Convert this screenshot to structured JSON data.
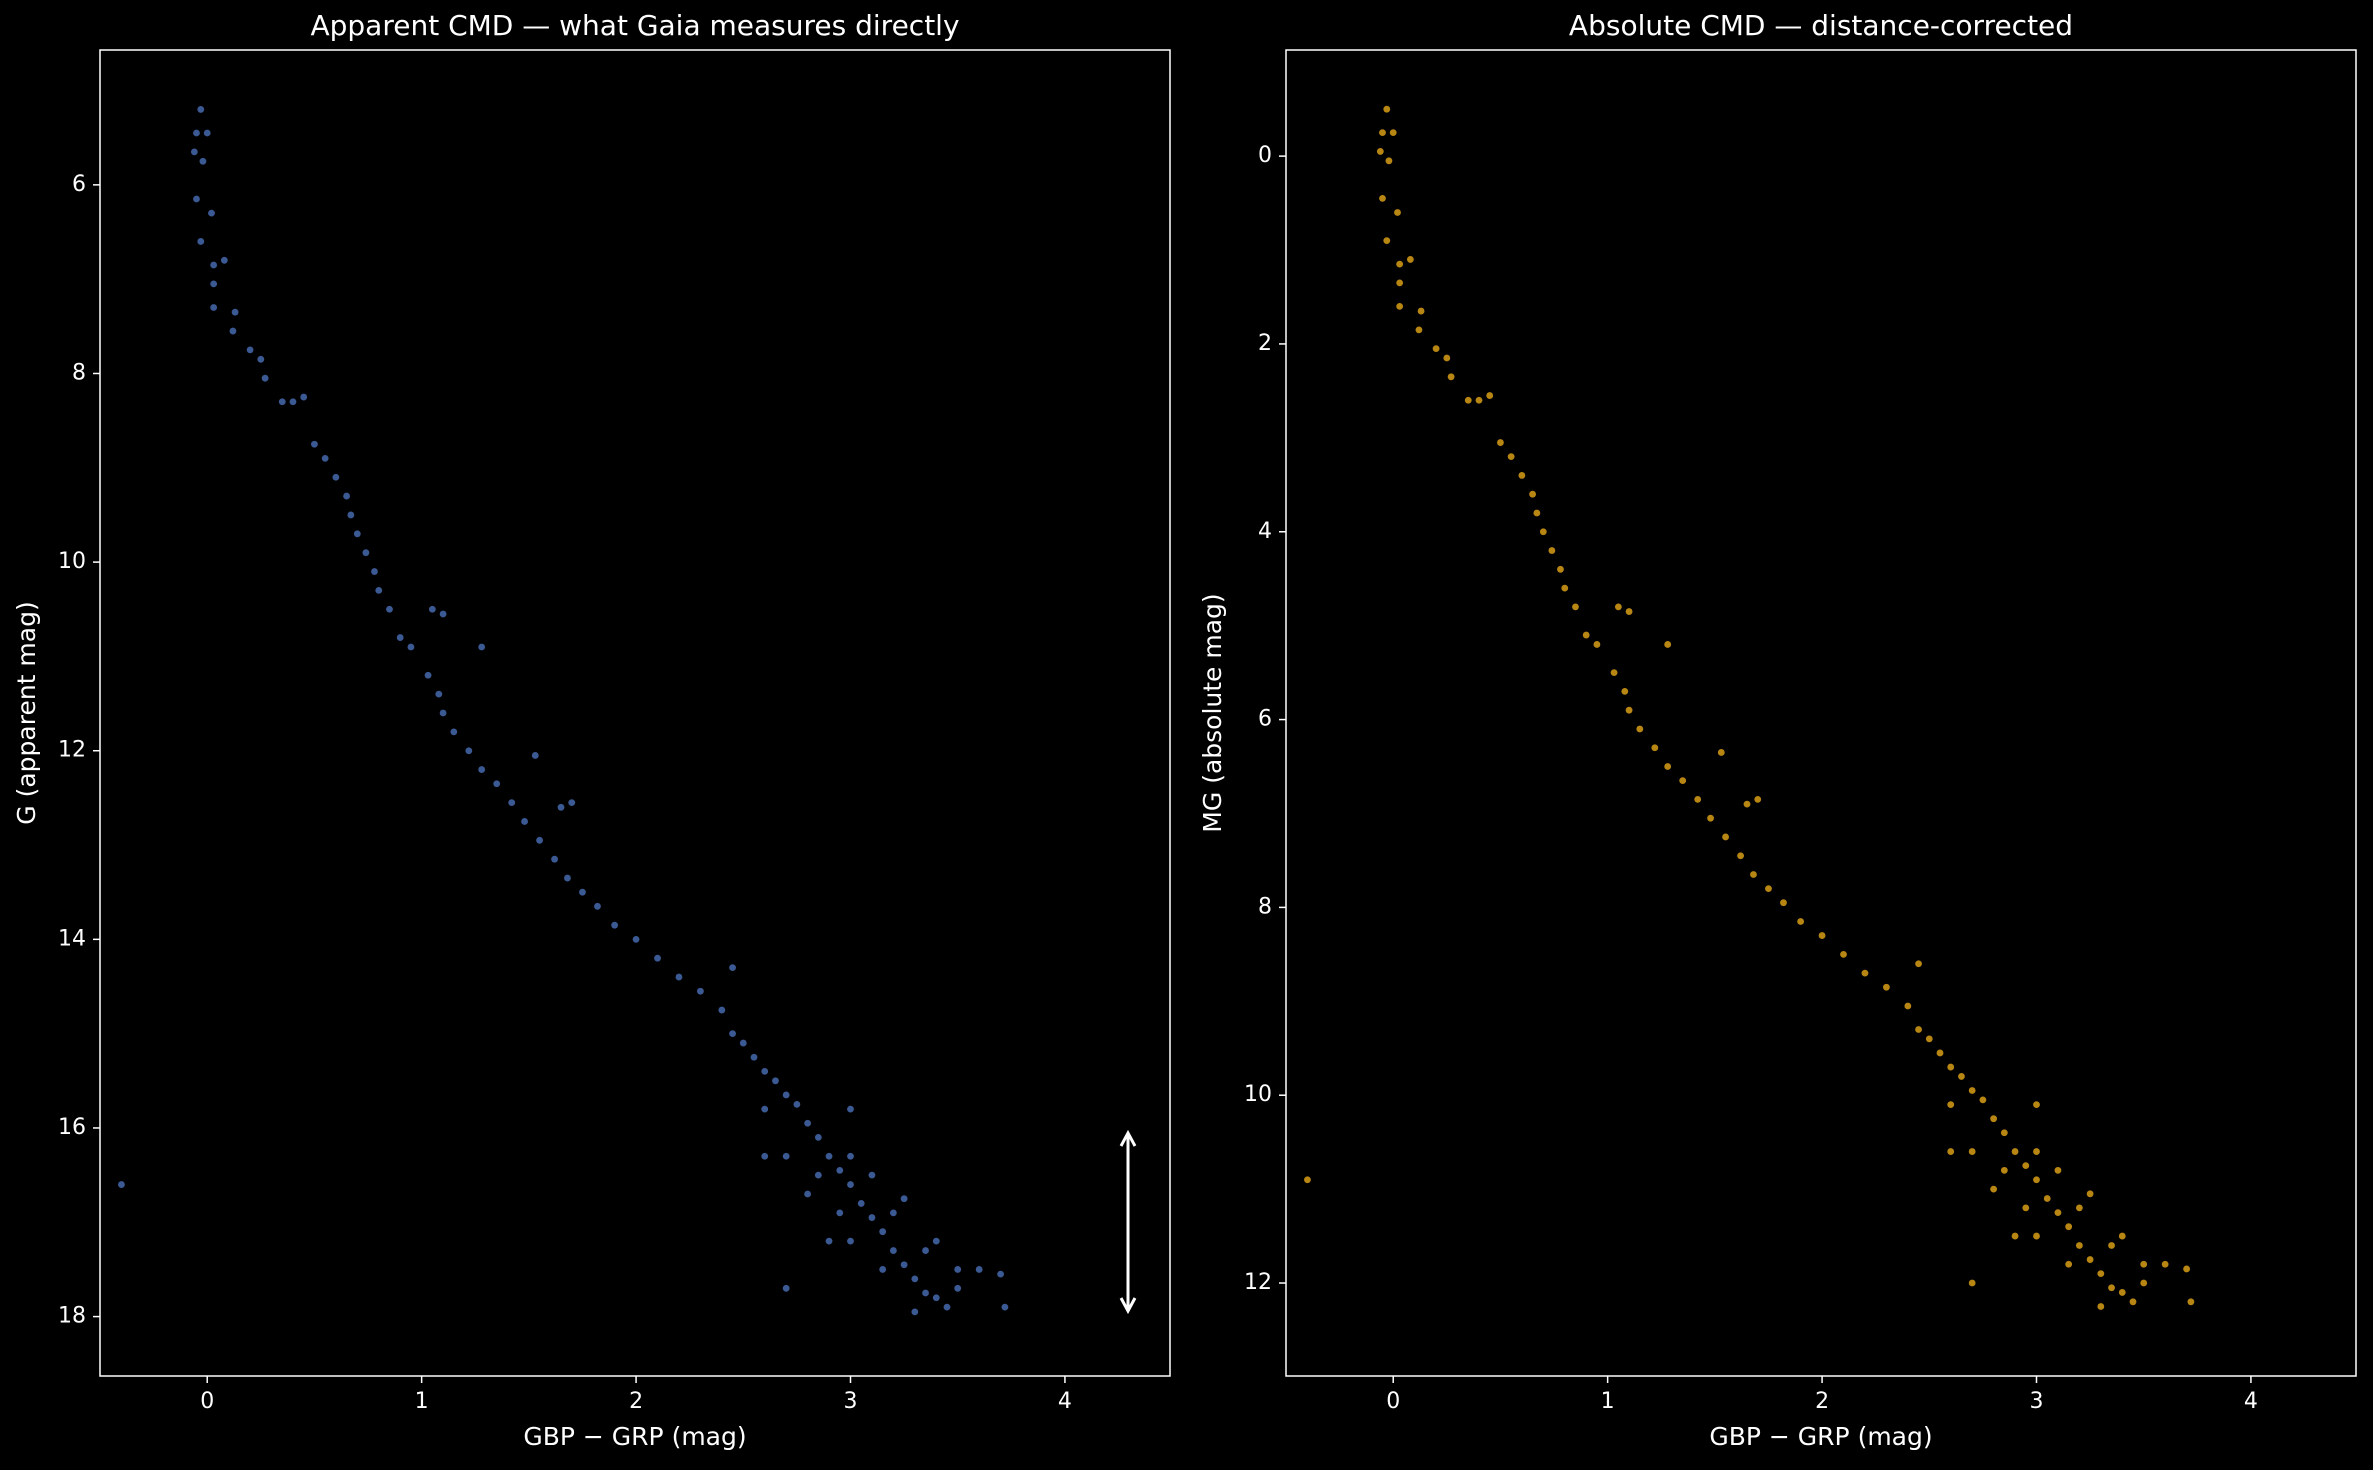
{
  "chart_data": [
    {
      "type": "scatter",
      "title": "Apparent CMD — what Gaia measures directly",
      "xlabel": "GBP − GRP (mag)",
      "ylabel": "G (apparent mag)",
      "color": "#4a6fb8",
      "xlim": [
        -0.5,
        4.49
      ],
      "ylim": [
        18.63,
        4.57
      ],
      "xticks": [
        0,
        1,
        2,
        3,
        4
      ],
      "yticks": [
        6,
        8,
        10,
        12,
        14,
        16,
        18
      ],
      "x": [
        -0.03,
        -0.05,
        0.0,
        -0.02,
        -0.06,
        -0.05,
        -0.03,
        0.02,
        0.03,
        0.08,
        0.03,
        0.03,
        0.12,
        0.13,
        0.2,
        0.25,
        0.27,
        0.35,
        0.4,
        0.45,
        0.5,
        0.55,
        0.6,
        0.65,
        0.67,
        0.7,
        0.74,
        0.78,
        0.8,
        0.85,
        0.9,
        0.95,
        1.03,
        1.08,
        1.1,
        1.15,
        1.22,
        1.28,
        1.35,
        1.42,
        1.48,
        1.55,
        1.62,
        1.68,
        1.75,
        1.82,
        1.9,
        2.0,
        2.1,
        2.2,
        2.3,
        2.4,
        2.45,
        2.5,
        2.55,
        2.6,
        2.65,
        2.7,
        2.75,
        2.8,
        2.85,
        2.9,
        2.95,
        3.0,
        3.05,
        3.1,
        3.15,
        3.2,
        3.25,
        3.3,
        3.35,
        3.4,
        3.45,
        3.3,
        3.5,
        3.6,
        3.7,
        3.72,
        3.1,
        3.25,
        2.95,
        2.9,
        2.7,
        2.7,
        2.6,
        2.45,
        3.0,
        2.85,
        1.7,
        1.65,
        1.53,
        1.28,
        1.1,
        1.05,
        -0.4,
        3.4,
        3.5,
        3.15,
        3.0,
        2.8,
        3.2,
        3.35,
        3.0,
        2.6
      ],
      "values": [
        5.2,
        5.45,
        5.45,
        5.75,
        5.65,
        6.15,
        6.6,
        6.3,
        6.85,
        6.8,
        7.05,
        7.3,
        7.55,
        7.35,
        7.75,
        7.85,
        8.05,
        8.3,
        8.3,
        8.25,
        8.75,
        8.9,
        9.1,
        9.3,
        9.5,
        9.7,
        9.9,
        10.1,
        10.3,
        10.5,
        10.8,
        10.9,
        11.2,
        11.4,
        11.6,
        11.8,
        12.0,
        12.2,
        12.35,
        12.55,
        12.75,
        12.95,
        13.15,
        13.35,
        13.5,
        13.65,
        13.85,
        14.0,
        14.2,
        14.4,
        14.55,
        14.75,
        15.0,
        15.1,
        15.25,
        15.4,
        15.5,
        15.65,
        15.75,
        15.95,
        16.1,
        16.3,
        16.45,
        16.6,
        16.8,
        16.95,
        17.1,
        17.3,
        17.45,
        17.6,
        17.75,
        17.8,
        17.9,
        17.95,
        17.7,
        17.5,
        17.55,
        17.9,
        16.5,
        16.75,
        16.9,
        17.2,
        17.7,
        16.3,
        15.8,
        14.3,
        15.8,
        16.5,
        12.55,
        12.6,
        12.05,
        10.9,
        10.55,
        10.5,
        16.6,
        17.2,
        17.5,
        17.5,
        17.2,
        16.7,
        16.9,
        17.3,
        16.3,
        16.3
      ]
    },
    {
      "type": "scatter",
      "title": "Absolute CMD — distance-corrected",
      "xlabel": "GBP − GRP (mag)",
      "ylabel": "MG (absolute mag)",
      "color": "#e6a817",
      "xlim": [
        -0.5,
        4.49
      ],
      "ylim": [
        12.99,
        -1.13
      ],
      "xticks": [
        0,
        1,
        2,
        3,
        4
      ],
      "yticks": [
        0,
        2,
        4,
        6,
        8,
        10,
        12
      ],
      "x": [
        -0.03,
        -0.05,
        0.0,
        -0.02,
        -0.06,
        -0.05,
        -0.03,
        0.02,
        0.03,
        0.08,
        0.03,
        0.03,
        0.12,
        0.13,
        0.2,
        0.25,
        0.27,
        0.35,
        0.4,
        0.45,
        0.5,
        0.55,
        0.6,
        0.65,
        0.67,
        0.7,
        0.74,
        0.78,
        0.8,
        0.85,
        0.9,
        0.95,
        1.03,
        1.08,
        1.1,
        1.15,
        1.22,
        1.28,
        1.35,
        1.42,
        1.48,
        1.55,
        1.62,
        1.68,
        1.75,
        1.82,
        1.9,
        2.0,
        2.1,
        2.2,
        2.3,
        2.4,
        2.45,
        2.5,
        2.55,
        2.6,
        2.65,
        2.7,
        2.75,
        2.8,
        2.85,
        2.9,
        2.95,
        3.0,
        3.05,
        3.1,
        3.15,
        3.2,
        3.25,
        3.3,
        3.35,
        3.4,
        3.45,
        3.3,
        3.5,
        3.6,
        3.7,
        3.72,
        3.1,
        3.25,
        2.95,
        2.9,
        2.7,
        2.7,
        2.6,
        2.45,
        3.0,
        2.85,
        1.7,
        1.65,
        1.53,
        1.28,
        1.1,
        1.05,
        -0.4,
        3.4,
        3.5,
        3.15,
        3.0,
        2.8,
        3.2,
        3.35,
        3.0,
        2.6
      ],
      "values": [
        -0.5,
        -0.25,
        -0.25,
        0.05,
        -0.05,
        0.45,
        0.9,
        0.6,
        1.15,
        1.1,
        1.35,
        1.6,
        1.85,
        1.65,
        2.05,
        2.15,
        2.35,
        2.6,
        2.6,
        2.55,
        3.05,
        3.2,
        3.4,
        3.6,
        3.8,
        4.0,
        4.2,
        4.4,
        4.6,
        4.8,
        5.1,
        5.2,
        5.5,
        5.7,
        5.9,
        6.1,
        6.3,
        6.5,
        6.65,
        6.85,
        7.05,
        7.25,
        7.45,
        7.65,
        7.8,
        7.95,
        8.15,
        8.3,
        8.5,
        8.7,
        8.85,
        9.05,
        9.3,
        9.4,
        9.55,
        9.7,
        9.8,
        9.95,
        10.05,
        10.25,
        10.4,
        10.6,
        10.75,
        10.9,
        11.1,
        11.25,
        11.4,
        11.6,
        11.75,
        11.9,
        12.05,
        12.1,
        12.2,
        12.25,
        12.0,
        11.8,
        11.85,
        12.2,
        10.8,
        11.05,
        11.2,
        11.5,
        12.0,
        10.6,
        10.1,
        8.6,
        10.1,
        10.8,
        6.85,
        6.9,
        6.35,
        5.2,
        4.85,
        4.8,
        10.9,
        11.5,
        11.8,
        11.8,
        11.5,
        11.0,
        11.2,
        11.6,
        10.6,
        10.6
      ]
    }
  ]
}
